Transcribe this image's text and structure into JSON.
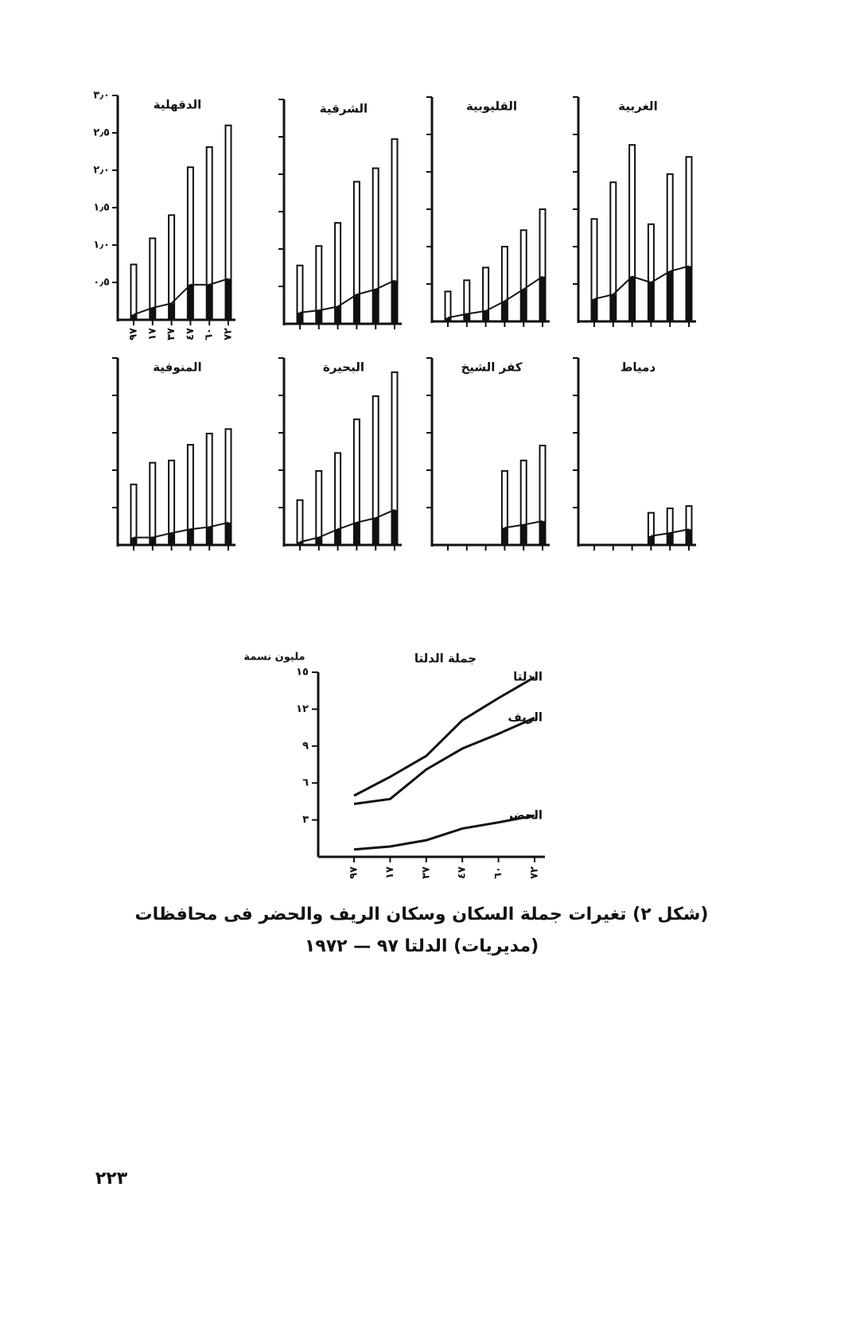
{
  "chart_data": [
    {
      "type": "bar",
      "title": "الدقهلية",
      "categories": [
        "٩٧",
        "١٧",
        "٣٧",
        "٤٧",
        "٦٠",
        "٧٢"
      ],
      "ylim": [
        0,
        3
      ],
      "yticks": [
        {
          "value": 0.5,
          "label": "٠٫٥"
        },
        {
          "value": 1,
          "label": "١٫٠"
        },
        {
          "value": 1.5,
          "label": "١٫٥"
        },
        {
          "value": 2,
          "label": "٢٫٠"
        },
        {
          "value": 2.5,
          "label": "٢٫٥"
        },
        {
          "value": 3,
          "label": "٣٫٠"
        }
      ],
      "series": [
        {
          "type": "bar",
          "color": "#111111",
          "values": [
            0.74,
            1.09,
            1.4,
            2.04,
            2.31,
            2.6
          ]
        },
        {
          "type": "line",
          "color": "#111111",
          "values": [
            0.07,
            0.16,
            0.22,
            0.47,
            0.47,
            0.55
          ]
        }
      ]
    },
    {
      "type": "bar",
      "title": "الشرقية",
      "categories": [
        null,
        null,
        null,
        null,
        null,
        null
      ],
      "ylim": [
        0,
        3
      ],
      "yticks": [
        0.5,
        1,
        1.5,
        2,
        2.5,
        3
      ],
      "series": [
        {
          "type": "bar",
          "color": "#111111",
          "values": [
            0.78,
            1.04,
            1.35,
            1.9,
            2.08,
            2.47
          ]
        },
        {
          "type": "line",
          "color": "#111111",
          "values": [
            0.15,
            0.18,
            0.23,
            0.39,
            0.46,
            0.58
          ]
        }
      ]
    },
    {
      "type": "bar",
      "title": "القليوبية",
      "categories": [
        null,
        null,
        null,
        null,
        null,
        null
      ],
      "ylim": [
        0,
        3
      ],
      "yticks": [
        0.5,
        1,
        1.5,
        2,
        2.5,
        3
      ],
      "series": [
        {
          "type": "bar",
          "color": "#111111",
          "values": [
            0.4,
            0.55,
            0.72,
            1.0,
            1.22,
            1.5
          ]
        },
        {
          "type": "line",
          "color": "#111111",
          "values": [
            0.05,
            0.1,
            0.14,
            0.27,
            0.43,
            0.6
          ]
        }
      ]
    },
    {
      "type": "bar",
      "title": "الغربية",
      "categories": [
        null,
        null,
        null,
        null,
        null,
        null
      ],
      "ylim": [
        0,
        3
      ],
      "yticks": [
        0.5,
        1,
        1.5,
        2,
        2.5,
        3
      ],
      "series": [
        {
          "type": "bar",
          "color": "#111111",
          "values": [
            1.37,
            1.86,
            2.36,
            1.3,
            1.97,
            2.2
          ]
        },
        {
          "type": "line",
          "color": "#111111",
          "values": [
            0.3,
            0.36,
            0.6,
            0.52,
            0.67,
            0.74
          ]
        }
      ]
    },
    {
      "type": "bar",
      "title": "المنوفية",
      "categories": [
        null,
        null,
        null,
        null,
        null,
        null
      ],
      "ylim": [
        0,
        2.5
      ],
      "yticks": [
        0.5,
        1,
        1.5,
        2,
        2.5
      ],
      "series": [
        {
          "type": "bar",
          "color": "#111111",
          "values": [
            0.81,
            1.1,
            1.13,
            1.34,
            1.49,
            1.55
          ]
        },
        {
          "type": "line",
          "color": "#111111",
          "values": [
            0.1,
            0.1,
            0.16,
            0.21,
            0.24,
            0.3
          ]
        }
      ]
    },
    {
      "type": "bar",
      "title": "البحيرة",
      "categories": [
        null,
        null,
        null,
        null,
        null,
        null
      ],
      "ylim": [
        0,
        2.5
      ],
      "yticks": [
        0.5,
        1,
        1.5,
        2,
        2.5
      ],
      "series": [
        {
          "type": "bar",
          "color": "#111111",
          "values": [
            0.6,
            0.99,
            1.23,
            1.68,
            1.99,
            2.31
          ]
        },
        {
          "type": "line",
          "color": "#111111",
          "values": [
            0.04,
            0.1,
            0.21,
            0.3,
            0.36,
            0.47
          ]
        }
      ]
    },
    {
      "type": "bar",
      "title": "كفر الشيخ",
      "categories": [
        null,
        null,
        null,
        null,
        null,
        null
      ],
      "ylim": [
        0,
        2.5
      ],
      "yticks": [
        0.5,
        1,
        1.5,
        2,
        2.5
      ],
      "series": [
        {
          "type": "bar",
          "color": "#111111",
          "values": [
            null,
            null,
            null,
            0.99,
            1.13,
            1.33
          ]
        },
        {
          "type": "line",
          "color": "#111111",
          "values": [
            null,
            null,
            null,
            0.23,
            0.27,
            0.32
          ]
        }
      ]
    },
    {
      "type": "bar",
      "title": "دمياط",
      "categories": [
        null,
        null,
        null,
        null,
        null,
        null
      ],
      "ylim": [
        0,
        2.5
      ],
      "yticks": [
        0.5,
        1,
        1.5,
        2,
        2.5
      ],
      "series": [
        {
          "type": "bar",
          "color": "#111111",
          "values": [
            null,
            null,
            null,
            0.43,
            0.49,
            0.52
          ]
        },
        {
          "type": "line",
          "color": "#111111",
          "values": [
            null,
            null,
            null,
            0.12,
            0.16,
            0.21
          ]
        }
      ]
    },
    {
      "type": "line",
      "title": "جملة الدلتا",
      "y_label": "مليون نسمة",
      "categories": [
        "٩٧",
        "١٧",
        "٣٧",
        "٤٧",
        "٦٠",
        "٧٢"
      ],
      "ylim": [
        0,
        15
      ],
      "yticks": [
        {
          "value": 3,
          "label": "٣"
        },
        {
          "value": 6,
          "label": "٦"
        },
        {
          "value": 9,
          "label": "٩"
        },
        {
          "value": 12,
          "label": "١٢"
        },
        {
          "value": 15,
          "label": "١٥"
        }
      ],
      "series": [
        {
          "name": "الدلتا",
          "color": "#111111",
          "values": [
            4.97,
            6.5,
            8.2,
            11.1,
            12.9,
            14.6
          ]
        },
        {
          "name": "الريف",
          "color": "#111111",
          "values": [
            4.3,
            4.7,
            7.1,
            8.8,
            10.0,
            11.3
          ]
        },
        {
          "name": "الحضر",
          "color": "#111111",
          "values": [
            0.6,
            0.84,
            1.35,
            2.3,
            2.8,
            3.35
          ]
        }
      ]
    }
  ],
  "caption": {
    "line1": "(شكل ٢) تغيرات جملة السكان وسكان الريف والحضر فى محافظات",
    "line2": "(مديريات) الدلتا ٩٧ — ١٩٧٢"
  },
  "page_number": "٢٢٣"
}
